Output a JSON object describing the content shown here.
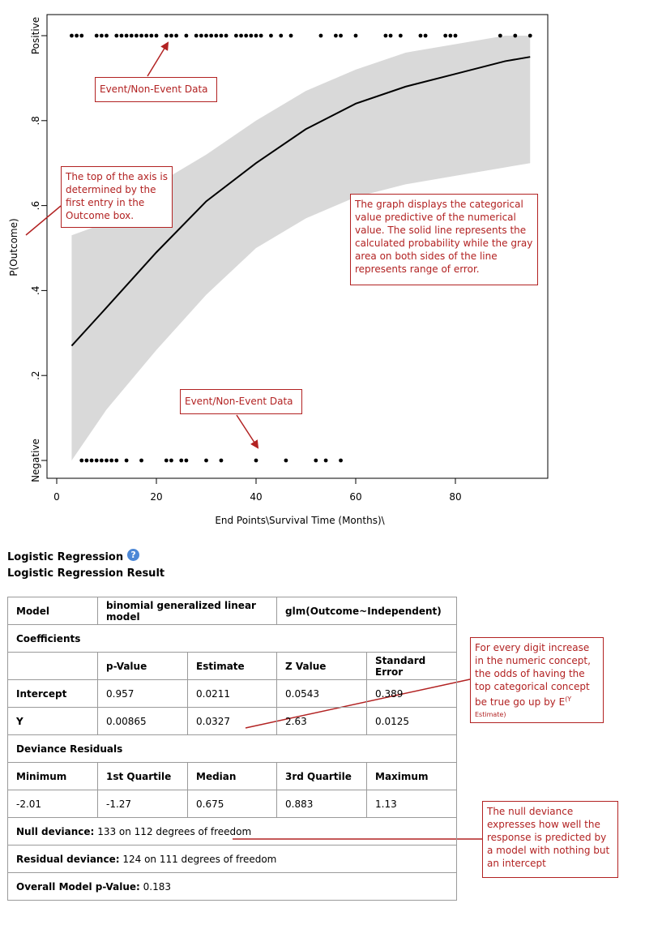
{
  "chart_data": {
    "type": "scatter",
    "xlabel": "End Points\\Survival Time (Months)\\",
    "ylabel": "P(Outcome)",
    "xlim": [
      0,
      97
    ],
    "ylim": [
      0,
      1
    ],
    "x_ticks": [
      0,
      20,
      40,
      60,
      80
    ],
    "x_tick_labels": [
      "0",
      "20",
      "40",
      "60",
      "80"
    ],
    "y_ticks": [
      0,
      0.2,
      0.4,
      0.6,
      0.8,
      1
    ],
    "y_tick_labels": [
      "Negative",
      ".2",
      ".4",
      ".6",
      ".8",
      "Positive"
    ],
    "grid": false,
    "positive_points_x": [
      3,
      4,
      5,
      8,
      9,
      10,
      12,
      13,
      14,
      15,
      16,
      17,
      18,
      19,
      20,
      22,
      23,
      24,
      26,
      28,
      29,
      30,
      31,
      32,
      33,
      34,
      36,
      37,
      38,
      39,
      40,
      41,
      43,
      45,
      47,
      53,
      56,
      57,
      60,
      66,
      67,
      69,
      73,
      74,
      78,
      79,
      80,
      89,
      92,
      95
    ],
    "negative_points_x": [
      5,
      6,
      7,
      8,
      9,
      10,
      11,
      12,
      14,
      17,
      22,
      23,
      25,
      26,
      30,
      33,
      40,
      46,
      52,
      54,
      57
    ],
    "fit_curve": {
      "x": [
        3,
        10,
        20,
        30,
        40,
        50,
        60,
        70,
        80,
        90,
        95
      ],
      "y": [
        0.27,
        0.36,
        0.49,
        0.61,
        0.7,
        0.78,
        0.84,
        0.88,
        0.91,
        0.94,
        0.95
      ]
    },
    "ci_band": {
      "x": [
        3,
        10,
        20,
        30,
        40,
        50,
        60,
        70,
        80,
        90,
        95
      ],
      "lower": [
        0.0,
        0.12,
        0.26,
        0.39,
        0.5,
        0.57,
        0.62,
        0.65,
        0.67,
        0.69,
        0.7
      ],
      "upper": [
        0.53,
        0.56,
        0.65,
        0.72,
        0.8,
        0.87,
        0.92,
        0.96,
        0.98,
        1.0,
        1.0
      ]
    },
    "annotations": [
      "Event/Non-Event Data",
      "The top of the axis is determined by the first entry in the Outcome box.",
      "The graph displays the categorical value predictive of the numerical value. The solid line represents the calculated probability while the gray area on both sides of the line represents range of error.",
      "Event/Non-Event Data"
    ]
  },
  "callouts": {
    "event_top": "Event/Non-Event Data",
    "axis_top": "The top of the axis is determined by the first entry in the Outcome box.",
    "graph_desc": "The graph displays the categorical value predictive of the numerical value. The solid line represents the calculated probability while the gray area on both sides of the line represents range of error.",
    "event_bottom": "Event/Non-Event Data",
    "odds_main": "For every digit increase in the numeric concept, the odds of having the top categorical concept be true go up by E",
    "odds_sup": "(Y Estimate)",
    "null_deviance": "The null deviance expresses how well the response is predicted by a model with nothing but an intercept"
  },
  "section": {
    "title": "Logistic Regression",
    "help_glyph": "?",
    "subtitle": "Logistic Regression Result"
  },
  "result_table": {
    "model_label": "Model",
    "model_type": "binomial generalized linear model",
    "model_formula": "glm(Outcome~Independent)",
    "coefficients_label": "Coefficients",
    "coef_headers": [
      "p-Value",
      "Estimate",
      "Z Value",
      "Standard Error"
    ],
    "intercept": {
      "label": "Intercept",
      "p_value": "0.957",
      "estimate": "0.0211",
      "z_value": "0.0543",
      "std_error": "0.389"
    },
    "y": {
      "label": "Y",
      "p_value": "0.00865",
      "estimate": "0.0327",
      "z_value": "2.63",
      "std_error": "0.0125"
    },
    "deviance_label": "Deviance Residuals",
    "dev_headers": [
      "Minimum",
      "1st Quartile",
      "Median",
      "3rd Quartile",
      "Maximum"
    ],
    "dev_values": [
      "-2.01",
      "-1.27",
      "0.675",
      "0.883",
      "1.13"
    ],
    "null_deviance_label": "Null deviance:",
    "null_deviance_value": "133 on 112 degrees of freedom",
    "residual_deviance_label": "Residual deviance:",
    "residual_deviance_value": "124 on 111 degrees of freedom",
    "overall_label": "Overall Model p-Value:",
    "overall_value": "0.183"
  },
  "colors": {
    "annotation": "#b22222",
    "band": "#d9d9d9",
    "help_icon": "#4d88d6"
  }
}
